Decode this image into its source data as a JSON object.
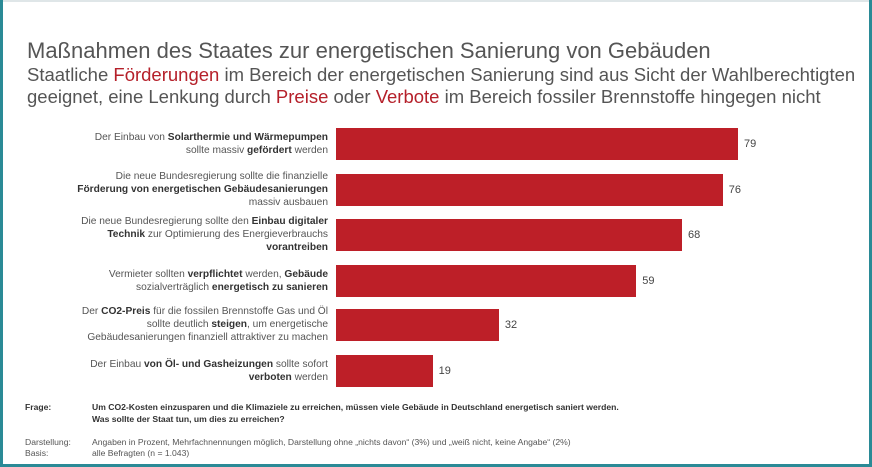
{
  "title": "Maßnahmen des Staates zur energetischen Sanierung von Gebäuden",
  "subtitle": [
    [
      {
        "t": "Staatliche "
      },
      {
        "t": "Förderungen",
        "red": true
      },
      {
        "t": " im Bereich der energetischen Sanierung sind aus Sicht der Wahlberechtigten"
      }
    ],
    [
      {
        "t": "geeignet, eine Lenkung durch "
      },
      {
        "t": "Preise",
        "red": true
      },
      {
        "t": " oder "
      },
      {
        "t": "Verbote",
        "red": true
      },
      {
        "t": " im Bereich fossiler Brennstoffe hingegen nicht"
      }
    ]
  ],
  "chart_data": {
    "type": "bar",
    "orientation": "horizontal",
    "xlim": [
      0,
      100
    ],
    "grid": false,
    "bar_color": "#bd1f28",
    "categories": [
      [
        [
          {
            "t": "Der Einbau von "
          },
          {
            "t": "Solarthermie und Wärmepumpen",
            "b": true
          }
        ],
        [
          {
            "t": "sollte massiv "
          },
          {
            "t": "gefördert",
            "b": true
          },
          {
            "t": " werden"
          }
        ]
      ],
      [
        [
          {
            "t": "Die neue Bundesregierung sollte die finanzielle"
          }
        ],
        [
          {
            "t": "Förderung von energetischen Gebäudesanierungen",
            "b": true
          }
        ],
        [
          {
            "t": "massiv ausbauen"
          }
        ]
      ],
      [
        [
          {
            "t": "Die neue Bundesregierung sollte den "
          },
          {
            "t": "Einbau digitaler",
            "b": true
          }
        ],
        [
          {
            "t": "Technik",
            "b": true
          },
          {
            "t": " zur Optimierung des Energieverbrauchs"
          }
        ],
        [
          {
            "t": "vorantreiben",
            "b": true
          }
        ]
      ],
      [
        [
          {
            "t": "Vermieter sollten "
          },
          {
            "t": "verpflichtet",
            "b": true
          },
          {
            "t": " werden, "
          },
          {
            "t": "Gebäude",
            "b": true
          }
        ],
        [
          {
            "t": "sozialverträglich "
          },
          {
            "t": "energetisch zu sanieren",
            "b": true
          }
        ]
      ],
      [
        [
          {
            "t": "Der "
          },
          {
            "t": "CO2-Preis",
            "b": true
          },
          {
            "t": " für die fossilen Brennstoffe Gas und Öl"
          }
        ],
        [
          {
            "t": "sollte deutlich "
          },
          {
            "t": "steigen",
            "b": true
          },
          {
            "t": ", um energetische"
          }
        ],
        [
          {
            "t": "Gebäudesanierungen finanziell attraktiver zu machen"
          }
        ]
      ],
      [
        [
          {
            "t": "Der Einbau "
          },
          {
            "t": "von Öl- und Gasheizungen",
            "b": true
          },
          {
            "t": " sollte sofort"
          }
        ],
        [
          {
            "t": "verboten",
            "b": true
          },
          {
            "t": " werden"
          }
        ]
      ]
    ],
    "values": [
      79,
      76,
      68,
      59,
      32,
      19
    ]
  },
  "footer": {
    "question_label": "Frage:",
    "question": [
      "Um CO2-Kosten einzusparen und die Klimaziele zu erreichen, müssen viele Gebäude in Deutschland energetisch saniert werden.",
      "Was sollte der Staat tun, um dies zu erreichen?"
    ],
    "display_label": "Darstellung:",
    "display": "Angaben in Prozent, Mehrfachnennungen möglich, Darstellung ohne „nichts davon“ (3%) und „weiß nicht, keine Angabe“ (2%)",
    "basis_label": "Basis:",
    "basis": "alle Befragten (n = 1.043)"
  }
}
